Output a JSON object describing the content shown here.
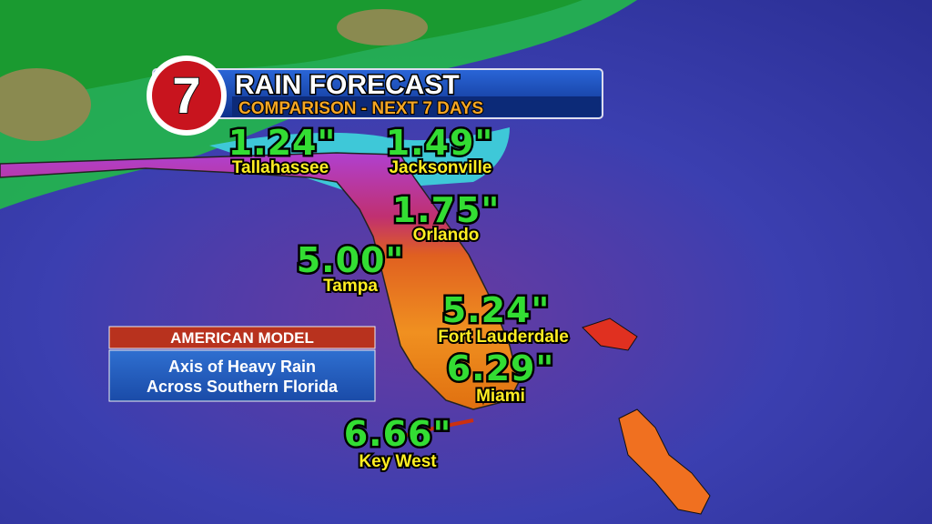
{
  "header": {
    "logo": "7",
    "title": "RAIN FORECAST",
    "subtitle": "COMPARISON - NEXT 7 DAYS"
  },
  "cities": [
    {
      "amount": "1.24\"",
      "name": "Tallahassee"
    },
    {
      "amount": "1.49\"",
      "name": "Jacksonville"
    },
    {
      "amount": "1.75\"",
      "name": "Orlando"
    },
    {
      "amount": "5.00\"",
      "name": "Tampa"
    },
    {
      "amount": "5.24\"",
      "name": "Fort Lauderdale"
    },
    {
      "amount": "6.29\"",
      "name": "Miami"
    },
    {
      "amount": "6.66\"",
      "name": "Key West"
    }
  ],
  "panel": {
    "heading": "AMERICAN MODEL",
    "lines": [
      "Axis of Heavy Rain",
      "Across Southern Florida"
    ]
  }
}
